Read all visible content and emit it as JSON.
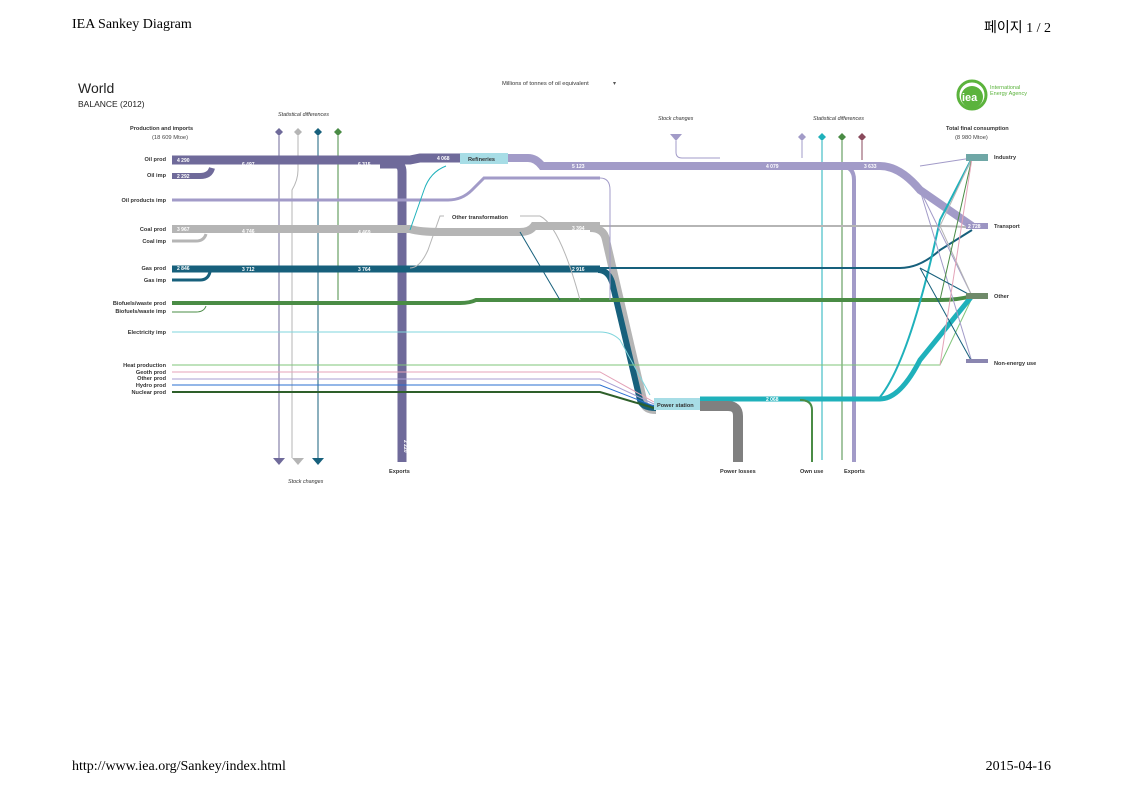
{
  "print_header": {
    "title": "IEA Sankey Diagram",
    "page": "페이지 1 / 2"
  },
  "print_footer": {
    "url": "http://www.iea.org/Sankey/index.html",
    "date": "2015-04-16"
  },
  "diagram": {
    "region": "World",
    "balance_label": "BALANCE (2012)",
    "units_label": "Millions of tonnes of oil equivalent",
    "logo": {
      "text_line1": "International",
      "text_line2": "Energy Agency",
      "mark": "iea",
      "color": "#5bb33c"
    },
    "left_header": {
      "title": "Production and imports",
      "total": "(18 609 Mtoe)"
    },
    "right_header": {
      "title": "Total final consumption",
      "total": "(8 980 Mtoe)"
    },
    "sources": [
      "Oil prod",
      "Oil imp",
      "Oil products imp",
      "Coal prod",
      "Coal imp",
      "Gas prod",
      "Gas imp",
      "Biofuels/waste prod",
      "Biofuels/waste imp",
      "Electricity imp",
      "Heat production",
      "Geoth prod",
      "Other prod",
      "Hydro prod",
      "Nuclear prod"
    ],
    "nodes": {
      "refineries": "Refineries",
      "other_transformation": "Other transformation",
      "power_station": "Power station"
    },
    "sinks": [
      "Industry",
      "Transport",
      "Other",
      "Non-energy use"
    ],
    "bottom_labels": {
      "exports_left": "Exports",
      "stock_changes_bottom": "Stock changes",
      "power_losses": "Power losses",
      "own_use": "Own use",
      "exports_right": "Exports"
    },
    "top_labels": {
      "stat_diff_left": "Statistical differences",
      "stock_changes_top": "Stock changes",
      "stat_diff_right": "Statistical differences"
    },
    "flow_values": {
      "oil_prod": "4 290",
      "oil_imp": "2 292",
      "oil_total": "6 497",
      "oil_after_export": "6 315",
      "refineries_in": "4 068",
      "oil_products": "5 123",
      "oil_products_after": "4 079",
      "oil_tfc": "3 633",
      "transport": "2 728",
      "coal_prod": "3 967",
      "coal_total": "4 746",
      "coal_mid": "4 469",
      "coal_to_power": "3 394",
      "gas_prod": "2 846",
      "gas_total": "3 712",
      "gas_mid": "3 764",
      "gas_to_power": "2 916",
      "electricity": "2 068",
      "exports_vertical": "2 220"
    },
    "colors": {
      "oil": "#6f6a9a",
      "oil_products": "#a29bc8",
      "coal": "#b5b5b5",
      "gas": "#17607c",
      "biofuels": "#4a8c45",
      "electricity": "#1fb1bb",
      "power_losses": "#808080",
      "node_fill": "#a7dde6",
      "heat": "#7fc47a",
      "geoth": "#e4a3b8",
      "other_prod": "#a89fd3",
      "hydro": "#2a6fd1",
      "nuclear": "#2e5f2a"
    }
  }
}
